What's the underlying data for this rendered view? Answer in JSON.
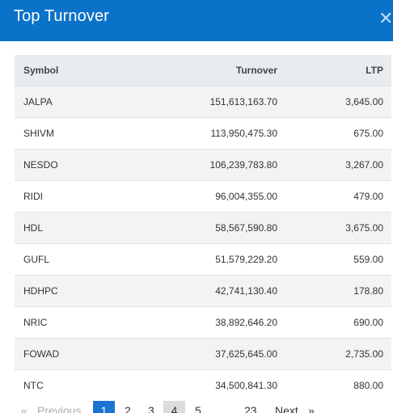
{
  "modal": {
    "title": "Top Turnover",
    "close_icon": "close-icon"
  },
  "table": {
    "headers": [
      "Symbol",
      "Turnover",
      "LTP"
    ],
    "rows": [
      {
        "symbol": "JALPA",
        "turnover": "151,613,163.70",
        "ltp": "3,645.00"
      },
      {
        "symbol": "SHIVM",
        "turnover": "113,950,475.30",
        "ltp": "675.00"
      },
      {
        "symbol": "NESDO",
        "turnover": "106,239,783.80",
        "ltp": "3,267.00"
      },
      {
        "symbol": "RIDI",
        "turnover": "96,004,355.00",
        "ltp": "479.00"
      },
      {
        "symbol": "HDL",
        "turnover": "58,567,590.80",
        "ltp": "3,675.00"
      },
      {
        "symbol": "GUFL",
        "turnover": "51,579,229.20",
        "ltp": "559.00"
      },
      {
        "symbol": "HDHPC",
        "turnover": "42,741,130.40",
        "ltp": "178.80"
      },
      {
        "symbol": "NRIC",
        "turnover": "38,892,646.20",
        "ltp": "690.00"
      },
      {
        "symbol": "FOWAD",
        "turnover": "37,625,645.00",
        "ltp": "2,735.00"
      },
      {
        "symbol": "NTC",
        "turnover": "34,500,841.30",
        "ltp": "880.00"
      }
    ]
  },
  "pagination": {
    "first": "«",
    "previous": "Previous",
    "pages": [
      "1",
      "2",
      "3",
      "4",
      "5"
    ],
    "last_page": "23",
    "next": "Next",
    "last": "»",
    "active_page": "1",
    "hover_page": "4",
    "accent_color": "#1a73d1"
  },
  "colors": {
    "header_bg": "#0b72c9",
    "table_head_bg": "#e9ecef",
    "row_stripe": "#f3f3f3"
  }
}
